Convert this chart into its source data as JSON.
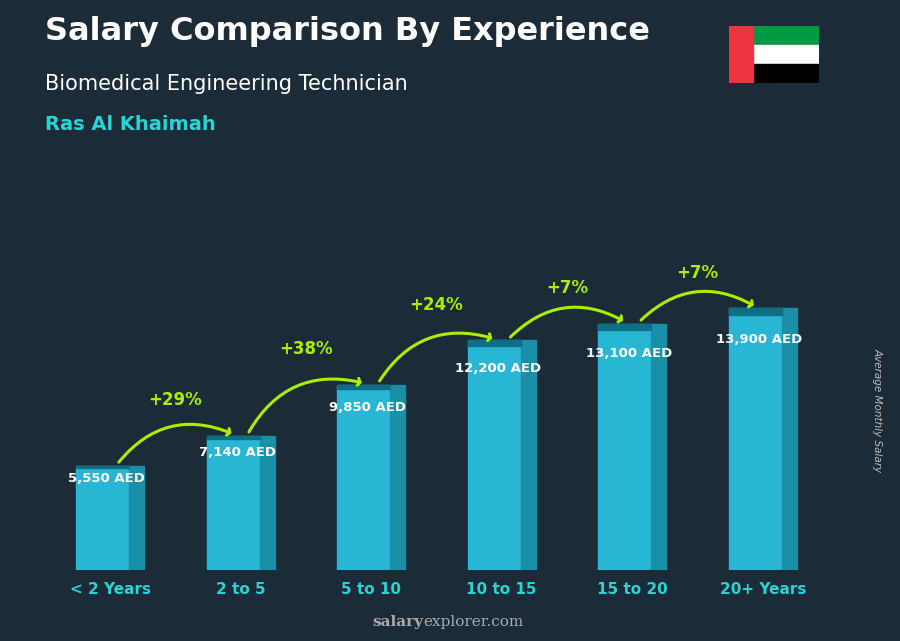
{
  "title": "Salary Comparison By Experience",
  "subtitle": "Biomedical Engineering Technician",
  "location": "Ras Al Khaimah",
  "categories": [
    "< 2 Years",
    "2 to 5",
    "5 to 10",
    "10 to 15",
    "15 to 20",
    "20+ Years"
  ],
  "values": [
    5550,
    7140,
    9850,
    12200,
    13100,
    13900
  ],
  "labels": [
    "5,550 AED",
    "7,140 AED",
    "9,850 AED",
    "12,200 AED",
    "13,100 AED",
    "13,900 AED"
  ],
  "pct_changes": [
    null,
    "+29%",
    "+38%",
    "+24%",
    "+7%",
    "+7%"
  ],
  "bar_color_main": "#29b6d4",
  "bar_color_dark": "#1a8fa8",
  "bar_color_top": "#0d6e84",
  "title_color": "#ffffff",
  "subtitle_color": "#ffffff",
  "location_color": "#29d4d4",
  "label_color": "#ffffff",
  "pct_color": "#aaee00",
  "arrow_color": "#aaee00",
  "xtick_color": "#29d4d4",
  "bg_color": "#1c2b38",
  "watermark_salary": "salary",
  "watermark_explorer": "explorer.com",
  "ylabel_rotated": "Average Monthly Salary",
  "ylim": [
    0,
    17000
  ],
  "bar_width": 0.52
}
